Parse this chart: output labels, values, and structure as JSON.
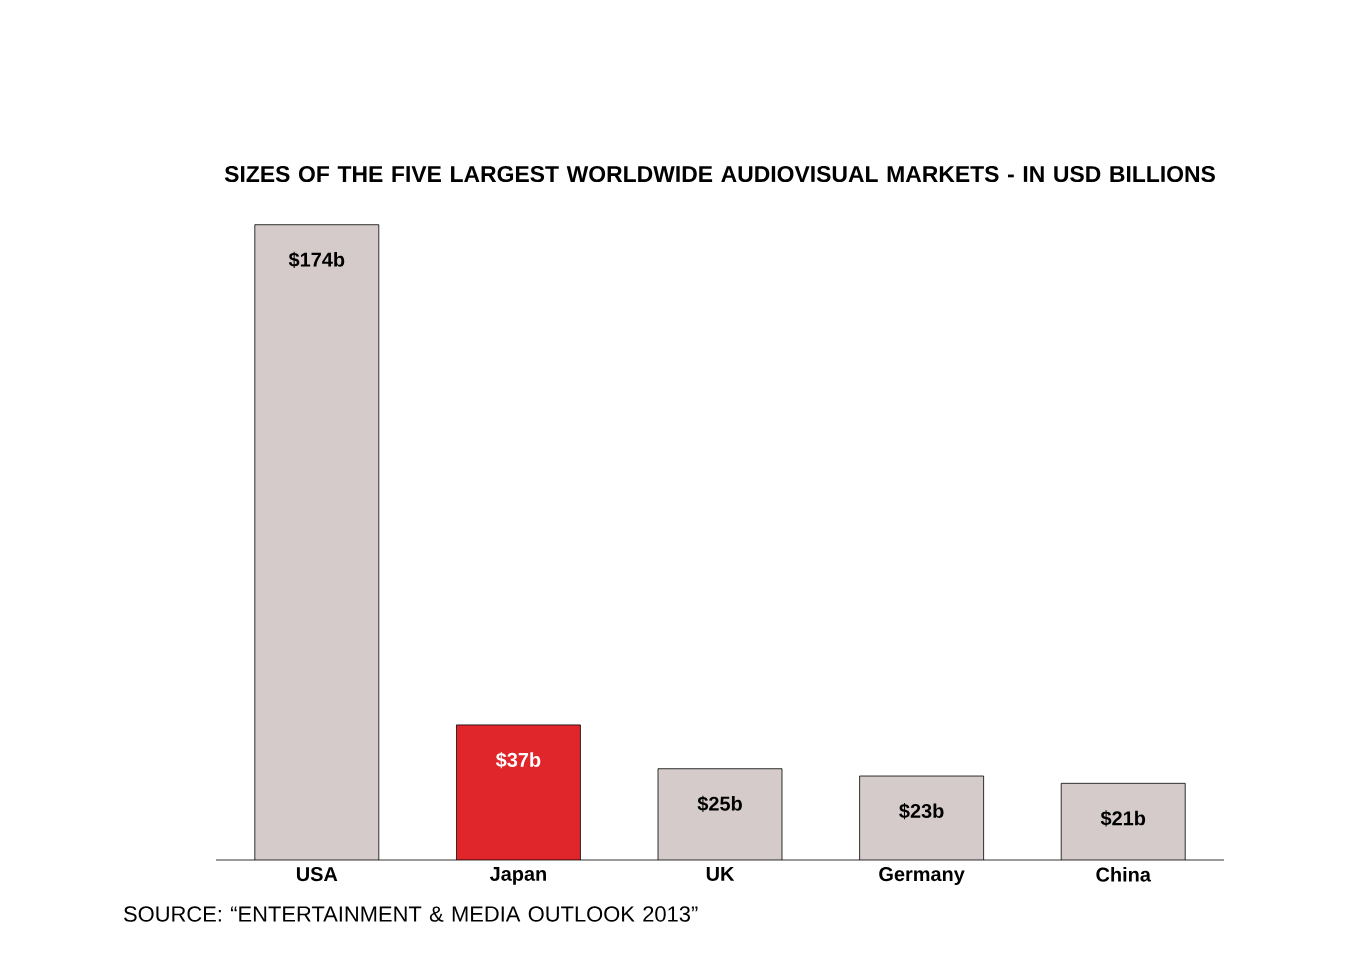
{
  "chart_data": {
    "type": "bar",
    "title": "SIZES OF THE FIVE LARGEST WORLDWIDE AUDIOVISUAL MARKETS - IN USD BILLIONS",
    "categories": [
      "USA",
      "Japan",
      "UK",
      "Germany",
      "China"
    ],
    "values": [
      174,
      37,
      25,
      23,
      21
    ],
    "value_labels": [
      "$174b",
      "$37b",
      "$25b",
      "$23b",
      "$21b"
    ],
    "colors": [
      "#d5cbcb",
      "#e0262a",
      "#d5cbcb",
      "#d5cbcb",
      "#d5cbcb"
    ],
    "annotations": [
      "SOURCE: “ENTERTAINMENT & MEDIA OUTLOOK 2013”"
    ]
  }
}
